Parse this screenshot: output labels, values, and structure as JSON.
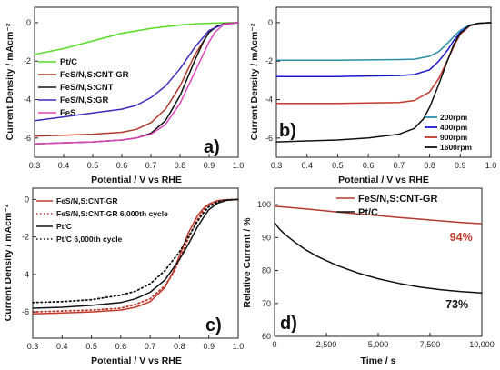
{
  "colors": {
    "ptc_a": "#55dd22",
    "fesns_cnt_gr_a": "#b03a2e",
    "fesns_cnt_a": "#111111",
    "fesns_gr_a": "#3a2bbd",
    "fes_a": "#dd44bb",
    "rpm200": "#2a8da8",
    "rpm400": "#1a1acc",
    "rpm900": "#c0392b",
    "rpm1600": "#111111",
    "c_cntgr": "#c0392b",
    "c_ptc": "#111111",
    "d_cntgr": "#b03a2e",
    "d_ptc": "#111111",
    "annotation_94": "#c0392b"
  },
  "chart_data": [
    {
      "panel": "a)",
      "type": "line",
      "xlabel": "Potential / V vs RHE",
      "ylabel": "Current Density / mAcm⁻²",
      "xlim": [
        0.3,
        1.0
      ],
      "ylim": [
        -7,
        0.8
      ],
      "xticks": [
        0.3,
        0.4,
        0.5,
        0.6,
        0.7,
        0.8,
        0.9,
        1.0
      ],
      "xtick_labels": [
        "0.3",
        "0.4",
        "0.5",
        "0.6",
        "0.7",
        "0.8",
        "0.9",
        "1.0"
      ],
      "yticks": [
        0,
        -2,
        -4,
        -6
      ],
      "ytick_labels": [
        "0",
        "-2",
        "-4",
        "-6"
      ],
      "legend_position": "left",
      "series": [
        {
          "name": "Pt/C",
          "color_key": "ptc_a",
          "x": [
            0.3,
            0.4,
            0.5,
            0.6,
            0.7,
            0.8,
            0.85,
            0.9,
            0.95,
            1.0
          ],
          "y": [
            -1.65,
            -1.35,
            -0.95,
            -0.55,
            -0.3,
            -0.12,
            -0.06,
            -0.03,
            -0.01,
            0
          ]
        },
        {
          "name": "FeS/N,S:CNT-GR",
          "color_key": "fesns_cnt_gr_a",
          "x": [
            0.3,
            0.4,
            0.5,
            0.6,
            0.65,
            0.7,
            0.75,
            0.8,
            0.85,
            0.9,
            0.92,
            0.95,
            1.0
          ],
          "y": [
            -5.9,
            -5.85,
            -5.8,
            -5.7,
            -5.55,
            -5.2,
            -4.5,
            -3.3,
            -1.7,
            -0.5,
            -0.25,
            -0.05,
            0
          ]
        },
        {
          "name": "FeS/N,S:CNT",
          "color_key": "fesns_cnt_a",
          "x": [
            0.3,
            0.4,
            0.5,
            0.6,
            0.65,
            0.7,
            0.75,
            0.8,
            0.85,
            0.88,
            0.9,
            0.93,
            1.0
          ],
          "y": [
            -6.3,
            -6.25,
            -6.2,
            -6.1,
            -6.0,
            -5.75,
            -5.1,
            -3.8,
            -2.0,
            -1.0,
            -0.5,
            -0.15,
            0
          ]
        },
        {
          "name": "FeS/N,S:GR",
          "color_key": "fesns_gr_a",
          "x": [
            0.3,
            0.4,
            0.5,
            0.6,
            0.65,
            0.7,
            0.75,
            0.8,
            0.85,
            0.9,
            0.95,
            1.0
          ],
          "y": [
            -5.1,
            -4.9,
            -4.7,
            -4.5,
            -4.3,
            -3.9,
            -3.3,
            -2.4,
            -1.3,
            -0.4,
            -0.08,
            0
          ]
        },
        {
          "name": "FeS",
          "color_key": "fes_a",
          "x": [
            0.3,
            0.4,
            0.5,
            0.6,
            0.65,
            0.7,
            0.75,
            0.8,
            0.85,
            0.9,
            0.92,
            0.95,
            1.0
          ],
          "y": [
            -6.3,
            -6.25,
            -6.2,
            -6.1,
            -6.0,
            -5.8,
            -5.3,
            -4.2,
            -2.6,
            -1.0,
            -0.5,
            -0.1,
            0
          ]
        }
      ]
    },
    {
      "panel": "b)",
      "type": "line",
      "xlabel": "Potential / V vs RHE",
      "ylabel": "Current Density / mAcm⁻²",
      "xlim": [
        0.3,
        1.0
      ],
      "ylim": [
        -7,
        0.8
      ],
      "xticks": [
        0.3,
        0.4,
        0.5,
        0.6,
        0.7,
        0.8,
        0.9,
        1.0
      ],
      "xtick_labels": [
        "0.3",
        "0.4",
        "0.5",
        "0.6",
        "0.7",
        "0.8",
        "0.9",
        "1.0"
      ],
      "yticks": [
        0,
        -2,
        -4,
        -6
      ],
      "ytick_labels": [
        "0",
        "-2",
        "-4",
        "-6"
      ],
      "legend_position": "bottom-right",
      "series": [
        {
          "name": "200rpm",
          "color_key": "rpm200",
          "x": [
            0.3,
            0.5,
            0.7,
            0.75,
            0.8,
            0.83,
            0.86,
            0.88,
            0.9,
            0.93,
            0.96,
            1.0
          ],
          "y": [
            -1.95,
            -1.95,
            -1.92,
            -1.9,
            -1.75,
            -1.5,
            -1.05,
            -0.7,
            -0.4,
            -0.12,
            -0.03,
            0
          ]
        },
        {
          "name": "400rpm",
          "color_key": "rpm400",
          "x": [
            0.3,
            0.5,
            0.7,
            0.75,
            0.8,
            0.83,
            0.86,
            0.88,
            0.9,
            0.93,
            0.96,
            1.0
          ],
          "y": [
            -2.8,
            -2.8,
            -2.75,
            -2.7,
            -2.45,
            -2.0,
            -1.4,
            -0.9,
            -0.5,
            -0.15,
            -0.04,
            0
          ]
        },
        {
          "name": "900rpm",
          "color_key": "rpm900",
          "x": [
            0.3,
            0.5,
            0.7,
            0.75,
            0.8,
            0.83,
            0.86,
            0.88,
            0.9,
            0.93,
            0.96,
            1.0
          ],
          "y": [
            -4.2,
            -4.2,
            -4.15,
            -4.05,
            -3.6,
            -2.9,
            -1.9,
            -1.2,
            -0.6,
            -0.18,
            -0.04,
            0
          ]
        },
        {
          "name": "1600rpm",
          "color_key": "rpm1600",
          "x": [
            0.3,
            0.4,
            0.5,
            0.6,
            0.7,
            0.75,
            0.78,
            0.8,
            0.83,
            0.86,
            0.88,
            0.9,
            0.93,
            0.96,
            1.0
          ],
          "y": [
            -6.2,
            -6.15,
            -6.1,
            -6.0,
            -5.8,
            -5.5,
            -5.0,
            -4.4,
            -3.2,
            -1.9,
            -1.1,
            -0.55,
            -0.15,
            -0.03,
            0
          ]
        }
      ]
    },
    {
      "panel": "c)",
      "type": "line",
      "xlabel": "Potential / V vs RHE",
      "ylabel": "Current Density / mAcm⁻²",
      "xlim": [
        0.3,
        1.0
      ],
      "ylim": [
        -7.4,
        0.6
      ],
      "xticks": [
        0.3,
        0.4,
        0.5,
        0.6,
        0.7,
        0.8,
        0.9,
        1.0
      ],
      "xtick_labels": [
        "0.3",
        "0.4",
        "0.5",
        "0.6",
        "0.7",
        "0.8",
        "0.9",
        "1.0"
      ],
      "yticks": [
        0,
        -2,
        -4,
        -6
      ],
      "ytick_labels": [
        "0",
        "-2",
        "-4",
        "-6"
      ],
      "legend_position": "top-left",
      "series": [
        {
          "name": "FeS/N,S:CNT-GR",
          "color_key": "c_cntgr",
          "dash": "solid",
          "x": [
            0.3,
            0.4,
            0.5,
            0.6,
            0.65,
            0.7,
            0.75,
            0.78,
            0.8,
            0.83,
            0.86,
            0.88,
            0.9,
            0.93,
            0.96,
            1.0
          ],
          "y": [
            -6.1,
            -6.05,
            -6.0,
            -5.9,
            -5.75,
            -5.45,
            -4.7,
            -3.8,
            -3.0,
            -1.8,
            -0.9,
            -0.5,
            -0.25,
            -0.06,
            -0.01,
            0
          ]
        },
        {
          "name": "FeS/N,S:CNT-GR 6,000th cycle",
          "color_key": "c_cntgr",
          "dash": "dotted",
          "x": [
            0.3,
            0.4,
            0.5,
            0.6,
            0.65,
            0.7,
            0.75,
            0.78,
            0.8,
            0.83,
            0.86,
            0.88,
            0.9,
            0.93,
            0.96,
            1.0
          ],
          "y": [
            -6.0,
            -5.95,
            -5.9,
            -5.8,
            -5.6,
            -5.3,
            -4.6,
            -3.9,
            -3.2,
            -2.1,
            -1.1,
            -0.6,
            -0.3,
            -0.08,
            -0.02,
            0
          ]
        },
        {
          "name": "Pt/C",
          "color_key": "c_ptc",
          "dash": "solid",
          "x": [
            0.3,
            0.4,
            0.5,
            0.6,
            0.65,
            0.7,
            0.75,
            0.8,
            0.83,
            0.86,
            0.88,
            0.9,
            0.93,
            0.96,
            1.0
          ],
          "y": [
            -5.8,
            -5.75,
            -5.65,
            -5.5,
            -5.3,
            -4.95,
            -4.3,
            -3.2,
            -2.4,
            -1.5,
            -1.0,
            -0.55,
            -0.2,
            -0.05,
            0
          ]
        },
        {
          "name": "Pt/C 6,000th cycle",
          "color_key": "c_ptc",
          "dash": "dotted",
          "x": [
            0.3,
            0.4,
            0.5,
            0.6,
            0.65,
            0.7,
            0.75,
            0.8,
            0.83,
            0.86,
            0.88,
            0.9,
            0.93,
            0.96,
            1.0
          ],
          "y": [
            -5.5,
            -5.45,
            -5.35,
            -5.1,
            -4.9,
            -4.5,
            -3.8,
            -2.8,
            -2.0,
            -1.2,
            -0.75,
            -0.4,
            -0.12,
            -0.03,
            0
          ]
        }
      ]
    },
    {
      "panel": "d)",
      "type": "line",
      "xlabel": "Time / s",
      "ylabel": "Relative Current / %",
      "xlim": [
        0,
        10000
      ],
      "ylim": [
        60,
        105
      ],
      "xticks": [
        0,
        2500,
        5000,
        7500,
        10000
      ],
      "xtick_labels": [
        "0",
        "2,500",
        "5,000",
        "7,500",
        "10,000"
      ],
      "yticks": [
        60,
        70,
        80,
        90,
        100
      ],
      "ytick_labels": [
        "60",
        "70",
        "80",
        "90",
        "100"
      ],
      "legend_position": "top-right",
      "annotations": [
        {
          "text": "94%",
          "x": 9000,
          "y": 89,
          "color_key": "annotation_94"
        },
        {
          "text": "73%",
          "x": 8800,
          "y": 68.5,
          "color_key": "d_ptc"
        }
      ],
      "series": [
        {
          "name": "FeS/N,S:CNT-GR",
          "color_key": "d_cntgr",
          "x": [
            0,
            1000,
            2000,
            3000,
            4000,
            5000,
            6000,
            7000,
            8000,
            9000,
            10000
          ],
          "y": [
            99.5,
            99.0,
            98.4,
            97.8,
            97.2,
            96.7,
            96.1,
            95.6,
            95.1,
            94.6,
            94.2
          ]
        },
        {
          "name": "Pt/C",
          "color_key": "d_ptc",
          "x": [
            0,
            250,
            500,
            1000,
            1500,
            2000,
            2500,
            3000,
            4000,
            5000,
            6000,
            7000,
            8000,
            9000,
            10000
          ],
          "y": [
            94.5,
            92.5,
            91.0,
            88.5,
            86.3,
            84.5,
            83.0,
            81.6,
            79.3,
            77.5,
            76.1,
            75.0,
            74.2,
            73.6,
            73.2
          ]
        }
      ]
    }
  ]
}
